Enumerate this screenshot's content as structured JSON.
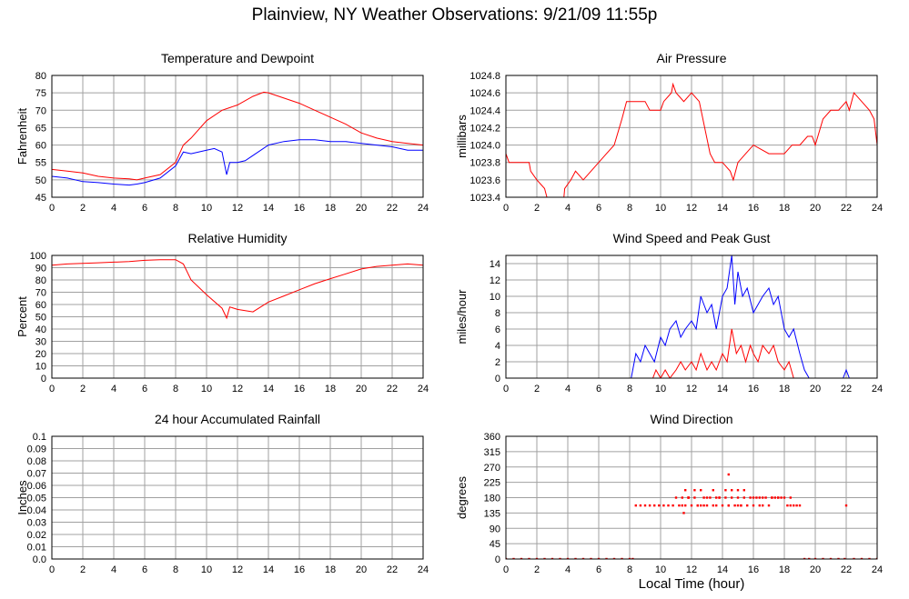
{
  "title": "Plainview, NY Weather Observations: 9/21/09 11:55p",
  "xlabel": "Local Time (hour)",
  "colors": {
    "red": "#ff0000",
    "blue": "#0000ff",
    "grid": "#a0a0a0"
  },
  "chart_data": [
    {
      "id": "temp",
      "type": "line",
      "title": "Temperature and Dewpoint",
      "ylabel": "Fahrenheit",
      "xlim": [
        0,
        24
      ],
      "ylim": [
        45,
        80
      ],
      "xticks": [
        0,
        2,
        4,
        6,
        8,
        10,
        12,
        14,
        16,
        18,
        20,
        22,
        24
      ],
      "yticks": [
        45,
        50,
        55,
        60,
        65,
        70,
        75,
        80
      ],
      "ytick_labels": [
        "45",
        "50",
        "55",
        "60",
        "65",
        "70",
        "75",
        "80"
      ],
      "series": [
        {
          "color": "#ff0000",
          "x": [
            0,
            1,
            2,
            3,
            4,
            5,
            5.5,
            6,
            7,
            8,
            8.5,
            9,
            10,
            11,
            12,
            13,
            13.7,
            14,
            15,
            16,
            17,
            18,
            19,
            20,
            21,
            22,
            23,
            24
          ],
          "y": [
            53,
            52.5,
            52,
            51,
            50.5,
            50.3,
            50,
            50.5,
            51.5,
            55,
            60,
            62,
            67,
            70,
            71.5,
            74,
            75.2,
            75,
            73.5,
            72,
            70,
            68,
            66,
            63.5,
            62,
            61,
            60.5,
            60
          ]
        },
        {
          "color": "#0000ff",
          "x": [
            0,
            1,
            2,
            3,
            4,
            5,
            5.5,
            6,
            7,
            8,
            8.5,
            9,
            10,
            10.5,
            11,
            11.3,
            11.5,
            12,
            12.5,
            13,
            14,
            15,
            16,
            17,
            18,
            19,
            20,
            21,
            22,
            23,
            24
          ],
          "y": [
            51,
            50.5,
            49.5,
            49.2,
            48.8,
            48.5,
            48.8,
            49.2,
            50.5,
            54,
            58,
            57.5,
            58.5,
            59,
            58,
            51.5,
            55,
            55,
            55.5,
            57,
            60,
            61,
            61.5,
            61.5,
            61,
            61,
            60.5,
            60,
            59.5,
            58.5,
            58.5
          ]
        }
      ]
    },
    {
      "id": "pressure",
      "type": "line",
      "title": "Air Pressure",
      "ylabel": "millibars",
      "xlim": [
        0,
        24
      ],
      "ylim": [
        1023.4,
        1024.8
      ],
      "xticks": [
        0,
        2,
        4,
        6,
        8,
        10,
        12,
        14,
        16,
        18,
        20,
        22,
        24
      ],
      "yticks": [
        1023.4,
        1023.6,
        1023.8,
        1024.0,
        1024.2,
        1024.4,
        1024.6,
        1024.8
      ],
      "ytick_labels": [
        "1023.4",
        "1023.6",
        "1023.8",
        "1024.0",
        "1024.2",
        "1024.4",
        "1024.6",
        "1024.8"
      ],
      "series": [
        {
          "color": "#ff0000",
          "x": [
            0,
            0.2,
            1.5,
            1.6,
            2,
            2.5,
            2.8,
            3.7,
            3.8,
            4.2,
            4.5,
            5,
            5.5,
            6,
            6.5,
            7,
            7.5,
            7.8,
            8.2,
            9,
            9.3,
            10,
            10.2,
            10.7,
            10.8,
            11,
            11.5,
            12,
            12.5,
            13.2,
            13.5,
            14,
            14.5,
            14.7,
            15,
            15.5,
            16,
            17,
            18,
            18.5,
            19,
            19.5,
            19.8,
            20,
            20.5,
            21,
            21.5,
            22,
            22.2,
            22.5,
            23.5,
            23.8,
            24
          ],
          "y": [
            1023.9,
            1023.8,
            1023.8,
            1023.7,
            1023.6,
            1023.5,
            1023.3,
            1023.3,
            1023.5,
            1023.6,
            1023.7,
            1023.6,
            1023.7,
            1023.8,
            1023.9,
            1024.0,
            1024.3,
            1024.5,
            1024.5,
            1024.5,
            1024.4,
            1024.4,
            1024.5,
            1024.6,
            1024.7,
            1024.6,
            1024.5,
            1024.6,
            1024.5,
            1023.9,
            1023.8,
            1023.8,
            1023.7,
            1023.6,
            1023.8,
            1023.9,
            1024.0,
            1023.9,
            1023.9,
            1024.0,
            1024.0,
            1024.1,
            1024.1,
            1024.0,
            1024.3,
            1024.4,
            1024.4,
            1024.5,
            1024.4,
            1024.6,
            1024.4,
            1024.3,
            1024.0
          ]
        }
      ]
    },
    {
      "id": "humidity",
      "type": "line",
      "title": "Relative Humidity",
      "ylabel": "Percent",
      "xlim": [
        0,
        24
      ],
      "ylim": [
        0,
        100
      ],
      "xticks": [
        0,
        2,
        4,
        6,
        8,
        10,
        12,
        14,
        16,
        18,
        20,
        22,
        24
      ],
      "yticks": [
        0,
        10,
        20,
        30,
        40,
        50,
        60,
        70,
        80,
        90,
        100
      ],
      "ytick_labels": [
        "0",
        "10",
        "20",
        "30",
        "40",
        "50",
        "60",
        "70",
        "80",
        "90",
        "100"
      ],
      "series": [
        {
          "color": "#ff0000",
          "x": [
            0,
            1,
            2,
            3,
            4,
            5,
            6,
            7,
            8,
            8.5,
            9,
            10,
            11,
            11.3,
            11.5,
            12,
            12.5,
            13,
            14,
            15,
            16,
            17,
            18,
            19,
            20,
            21,
            22,
            23,
            24
          ],
          "y": [
            92,
            93,
            93.5,
            94,
            94.5,
            95,
            96,
            96.5,
            96.5,
            93,
            80,
            68,
            57,
            49,
            58,
            56,
            55,
            54,
            62,
            67,
            72,
            77,
            81,
            85,
            89,
            91,
            92,
            93,
            92
          ]
        }
      ]
    },
    {
      "id": "wind",
      "type": "line",
      "title": "Wind Speed and Peak Gust",
      "ylabel": "miles/hour",
      "xlim": [
        0,
        24
      ],
      "ylim": [
        0,
        15
      ],
      "xticks": [
        0,
        2,
        4,
        6,
        8,
        10,
        12,
        14,
        16,
        18,
        20,
        22,
        24
      ],
      "yticks": [
        0,
        2,
        4,
        6,
        8,
        10,
        12,
        14
      ],
      "ytick_labels": [
        "0",
        "2",
        "4",
        "6",
        "8",
        "10",
        "12",
        "14"
      ],
      "series": [
        {
          "color": "#0000ff",
          "x": [
            0,
            8.1,
            8.4,
            8.7,
            9,
            9.3,
            9.6,
            10,
            10.3,
            10.6,
            11,
            11.3,
            11.6,
            12,
            12.3,
            12.6,
            13,
            13.3,
            13.6,
            14,
            14.3,
            14.6,
            14.8,
            15,
            15.3,
            15.6,
            16,
            16.3,
            16.6,
            17,
            17.3,
            17.6,
            18,
            18.3,
            18.6,
            19,
            19.3,
            19.6,
            21.8,
            22,
            22.2,
            24
          ],
          "y": [
            0,
            0,
            3,
            2,
            4,
            3,
            2,
            5,
            4,
            6,
            7,
            5,
            6,
            7,
            6,
            10,
            8,
            9,
            6,
            10,
            11,
            15,
            9,
            13,
            10,
            11,
            8,
            9,
            10,
            11,
            9,
            10,
            6,
            5,
            6,
            3,
            1,
            0,
            0,
            1,
            0,
            0
          ]
        },
        {
          "color": "#ff0000",
          "x": [
            0,
            9.5,
            9.7,
            10,
            10.3,
            10.6,
            11,
            11.3,
            11.6,
            12,
            12.3,
            12.6,
            13,
            13.3,
            13.6,
            14,
            14.3,
            14.6,
            14.9,
            15.2,
            15.5,
            15.8,
            16,
            16.3,
            16.6,
            17,
            17.3,
            17.6,
            18,
            18.3,
            18.6,
            24
          ],
          "y": [
            0,
            0,
            1,
            0,
            1,
            0,
            1,
            2,
            1,
            2,
            1,
            3,
            1,
            2,
            1,
            3,
            2,
            6,
            3,
            4,
            2,
            4,
            3,
            2,
            4,
            3,
            4,
            2,
            1,
            2,
            0,
            0
          ]
        }
      ]
    },
    {
      "id": "rain",
      "type": "line",
      "title": "24 hour Accumulated Rainfall",
      "ylabel": "Inches",
      "xlim": [
        0,
        24
      ],
      "ylim": [
        0,
        0.1
      ],
      "xticks": [
        0,
        2,
        4,
        6,
        8,
        10,
        12,
        14,
        16,
        18,
        20,
        22,
        24
      ],
      "yticks": [
        0,
        0.01,
        0.02,
        0.03,
        0.04,
        0.05,
        0.06,
        0.07,
        0.08,
        0.09,
        0.1
      ],
      "ytick_labels": [
        "0.0",
        "0.01",
        "0.02",
        "0.03",
        "0.04",
        "0.05",
        "0.06",
        "0.07",
        "0.08",
        "0.09",
        "0.1"
      ],
      "series": [
        {
          "color": "#ff0000",
          "x": [
            0,
            24
          ],
          "y": [
            0,
            0
          ]
        }
      ]
    },
    {
      "id": "direction",
      "type": "scatter",
      "title": "Wind Direction",
      "ylabel": "degrees",
      "xlim": [
        0,
        24
      ],
      "ylim": [
        0,
        360
      ],
      "xticks": [
        0,
        2,
        4,
        6,
        8,
        10,
        12,
        14,
        16,
        18,
        20,
        22,
        24
      ],
      "yticks": [
        0,
        45,
        90,
        135,
        180,
        225,
        270,
        315,
        360
      ],
      "ytick_labels": [
        "0",
        "45",
        "90",
        "135",
        "180",
        "225",
        "270",
        "315",
        "360"
      ],
      "series": [
        {
          "color": "#ff0000",
          "x": [
            0,
            0.5,
            1,
            1.5,
            2,
            2.5,
            3,
            3.5,
            4,
            4.5,
            5,
            5.5,
            6,
            6.5,
            7,
            7.5,
            8,
            8.2,
            8.4,
            8.7,
            9,
            9.3,
            9.6,
            9.9,
            10.2,
            10.5,
            10.8,
            11,
            11.2,
            11.4,
            11.6,
            11.8,
            12,
            12.2,
            12.4,
            12.6,
            12.8,
            13,
            13.2,
            13.4,
            13.6,
            13.8,
            14,
            14.2,
            14.4,
            14.6,
            14.8,
            15,
            15.2,
            15.4,
            15.6,
            15.8,
            16,
            16.2,
            16.4,
            16.6,
            16.8,
            17,
            17.2,
            17.4,
            17.6,
            17.8,
            18,
            18.2,
            18.4,
            18.6,
            18.8,
            19,
            19.3,
            19.6,
            20,
            20.5,
            21,
            21.5,
            21.9,
            22,
            22.5,
            23,
            23.5,
            24,
            11.6,
            11.8,
            12.2,
            12.6,
            13,
            13.4,
            13.8,
            14.2,
            14.6,
            15,
            15.4,
            16.4,
            17.2,
            11.4,
            11.8,
            12.4,
            12.8,
            13.6,
            14.4,
            15,
            15.2,
            16,
            16.6,
            17.6,
            18.4,
            11.5,
            14.4
          ],
          "y": [
            0,
            0,
            0,
            0,
            0,
            0,
            0,
            0,
            0,
            0,
            0,
            0,
            0,
            0,
            0,
            0,
            0,
            0,
            157,
            157,
            157,
            157,
            157,
            157,
            157,
            157,
            157,
            180,
            157,
            157,
            157,
            180,
            157,
            180,
            157,
            157,
            180,
            157,
            180,
            157,
            157,
            180,
            157,
            180,
            157,
            180,
            157,
            180,
            157,
            180,
            157,
            180,
            157,
            180,
            157,
            180,
            180,
            157,
            180,
            180,
            180,
            180,
            180,
            157,
            180,
            157,
            157,
            157,
            0,
            0,
            0,
            0,
            0,
            0,
            0,
            157,
            0,
            0,
            0,
            0,
            202,
            180,
            202,
            202,
            180,
            202,
            180,
            202,
            202,
            202,
            202,
            180,
            180,
            180,
            180,
            157,
            157,
            180,
            157,
            157,
            157,
            180,
            157,
            180,
            157,
            135,
            248
          ]
        }
      ]
    }
  ]
}
